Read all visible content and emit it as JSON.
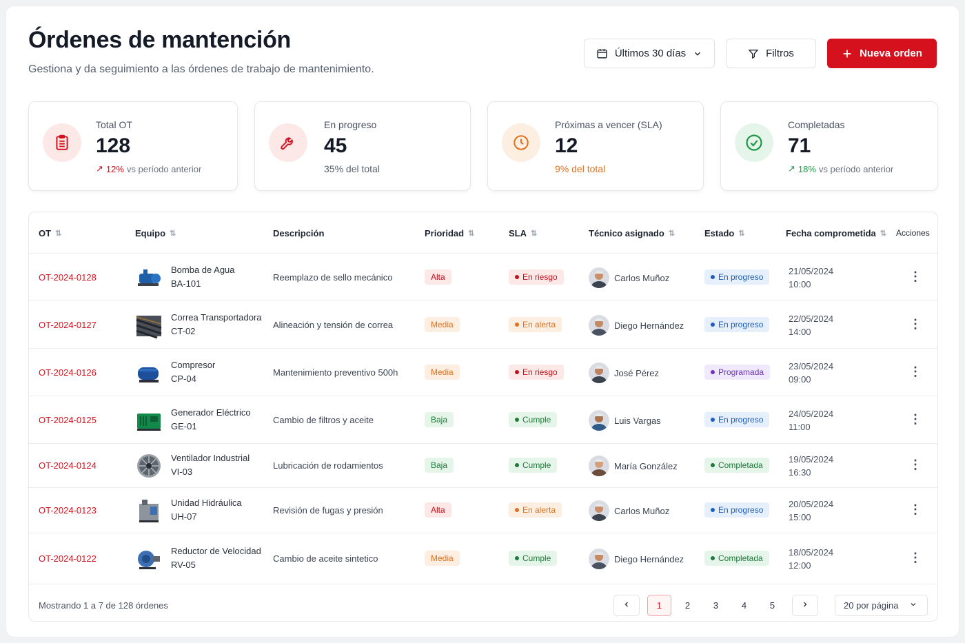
{
  "header": {
    "title": "Órdenes de mantención",
    "subtitle": "Gestiona y da seguimiento a las órdenes de trabajo de mantenimiento."
  },
  "actions": {
    "date_range": "Últimos 30 días",
    "filters": "Filtros",
    "new_order": "Nueva orden"
  },
  "colors": {
    "brand_red": "#d4111c",
    "progress_blue": "#1d5fb8",
    "warning_orange": "#e2711d",
    "success_green": "#1f7a3a"
  },
  "kpis": [
    {
      "label": "Total OT",
      "value": "128",
      "trend_pct": "12%",
      "trend_text": "vs período anterior",
      "icon": "clipboard-icon"
    },
    {
      "label": "En progreso",
      "value": "45",
      "foot": "35% del total",
      "icon": "wrench-icon"
    },
    {
      "label": "Próximas a vencer (SLA)",
      "value": "12",
      "foot": "9% del total",
      "icon": "clock-icon"
    },
    {
      "label": "Completadas",
      "value": "71",
      "trend_pct": "18%",
      "trend_text": "vs período anterior",
      "icon": "check-circle-icon"
    }
  ],
  "table": {
    "columns": [
      "OT",
      "Equipo",
      "Descripción",
      "Prioridad",
      "SLA",
      "Técnico asignado",
      "Estado",
      "Fecha comprometida",
      "Acciones"
    ],
    "rows": [
      {
        "ot": "OT-2024-0128",
        "equipo": "Bomba de Agua",
        "codigo": "BA-101",
        "descripcion": "Reemplazo de sello mecánico",
        "prioridad": "Alta",
        "sla": "En riesgo",
        "tecnico": "Carlos Muñoz",
        "estado": "En progreso",
        "fecha": "21/05/2024",
        "hora": "10:00"
      },
      {
        "ot": "OT-2024-0127",
        "equipo": "Correa Transportadora",
        "codigo": "CT-02",
        "descripcion": "Alineación y tensión de correa",
        "prioridad": "Media",
        "sla": "En alerta",
        "tecnico": "Diego Hernández",
        "estado": "En progreso",
        "fecha": "22/05/2024",
        "hora": "14:00"
      },
      {
        "ot": "OT-2024-0126",
        "equipo": "Compresor",
        "codigo": "CP-04",
        "descripcion": "Mantenimiento preventivo 500h",
        "prioridad": "Media",
        "sla": "En riesgo",
        "tecnico": "José Pérez",
        "estado": "Programada",
        "fecha": "23/05/2024",
        "hora": "09:00"
      },
      {
        "ot": "OT-2024-0125",
        "equipo": "Generador Eléctrico",
        "codigo": "GE-01",
        "descripcion": "Cambio de filtros y aceite",
        "prioridad": "Baja",
        "sla": "Cumple",
        "tecnico": "Luis Vargas",
        "estado": "En progreso",
        "fecha": "24/05/2024",
        "hora": "11:00"
      },
      {
        "ot": "OT-2024-0124",
        "equipo": "Ventilador Industrial",
        "codigo": "VI-03",
        "descripcion": "Lubricación de rodamientos",
        "prioridad": "Baja",
        "sla": "Cumple",
        "tecnico": "María González",
        "estado": "Completada",
        "fecha": "19/05/2024",
        "hora": "16:30"
      },
      {
        "ot": "OT-2024-0123",
        "equipo": "Unidad Hidráulica",
        "codigo": "UH-07",
        "descripcion": "Revisión de fugas y presión",
        "prioridad": "Alta",
        "sla": "En alerta",
        "tecnico": "Carlos Muñoz",
        "estado": "En progreso",
        "fecha": "20/05/2024",
        "hora": "15:00"
      },
      {
        "ot": "OT-2024-0122",
        "equipo": "Reductor de Velocidad",
        "codigo": "RV-05",
        "descripcion": "Cambio de aceite sintetico",
        "prioridad": "Media",
        "sla": "Cumple",
        "tecnico": "Diego Hernández",
        "estado": "Completada",
        "fecha": "18/05/2024",
        "hora": "12:00"
      }
    ]
  },
  "footer": {
    "showing": "Mostrando 1 a 7 de 128 órdenes",
    "pages": [
      "1",
      "2",
      "3",
      "4",
      "5"
    ],
    "current_page": "1",
    "per_page": "20 por página"
  }
}
